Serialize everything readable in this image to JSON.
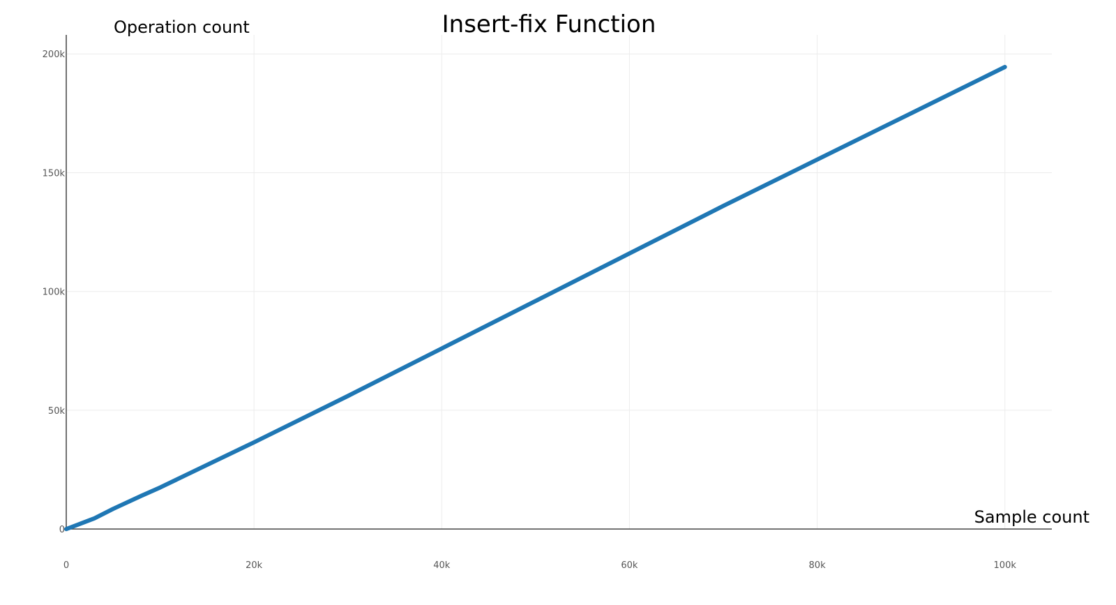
{
  "chart_data": {
    "type": "line",
    "title": "Insert-fix Function",
    "xlabel": "Sample count",
    "ylabel": "Operation count",
    "xlim": [
      0,
      105000
    ],
    "ylim": [
      -7000,
      208000
    ],
    "x_ticks": [
      0,
      20000,
      40000,
      60000,
      80000,
      100000
    ],
    "x_tick_labels": [
      "0",
      "20k",
      "40k",
      "60k",
      "80k",
      "100k"
    ],
    "y_ticks": [
      0,
      50000,
      100000,
      150000,
      200000
    ],
    "y_tick_labels": [
      "0",
      "50k",
      "100k",
      "150k",
      "200k"
    ],
    "grid": true,
    "series": [
      {
        "color": "#1f77b4",
        "x": [
          0,
          1000,
          3000,
          5000,
          8000,
          10000,
          15000,
          20000,
          30000,
          40000,
          50000,
          60000,
          70000,
          80000,
          90000,
          100000
        ],
        "y": [
          0,
          1500,
          4500,
          8500,
          14000,
          17500,
          27000,
          36500,
          56000,
          76000,
          96000,
          116000,
          136000,
          155500,
          175000,
          194500
        ]
      }
    ]
  }
}
